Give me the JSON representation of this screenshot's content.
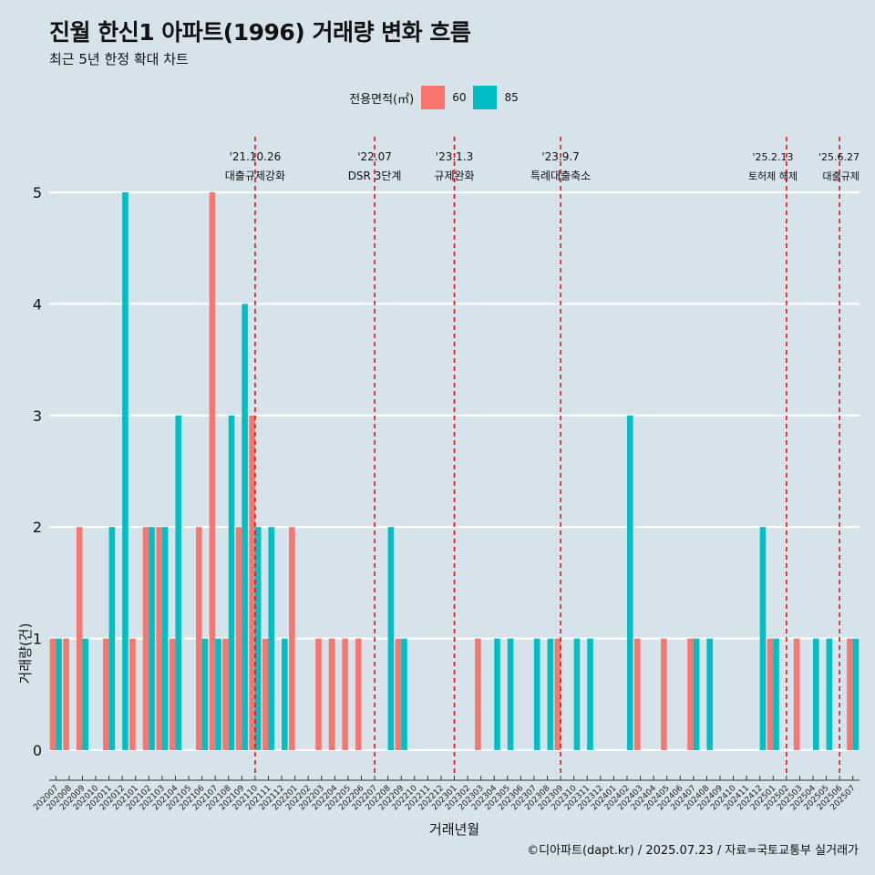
{
  "title": "진월 한신1 아파트(1996) 거래량 변화 흐름",
  "subtitle": "최근 5년 한정 확대 차트",
  "legend": {
    "title": "전용면적(㎡)",
    "items": [
      {
        "label": "60",
        "color": "#f8766d"
      },
      {
        "label": "85",
        "color": "#00bfc4"
      }
    ]
  },
  "caption": "©디아파트(dapt.kr) / 2025.07.23 / 자료=국토교통부 실거래가",
  "chart_data": {
    "type": "bar",
    "xlabel": "거래년월",
    "ylabel": "거래량(건)",
    "ylim": [
      0,
      5
    ],
    "yticks": [
      0,
      1,
      2,
      3,
      4,
      5
    ],
    "categories": [
      "202007",
      "202008",
      "202009",
      "202010",
      "202011",
      "202012",
      "202101",
      "202102",
      "202103",
      "202104",
      "202105",
      "202106",
      "202107",
      "202108",
      "202109",
      "202110",
      "202111",
      "202112",
      "202201",
      "202202",
      "202203",
      "202204",
      "202205",
      "202206",
      "202207",
      "202208",
      "202209",
      "202210",
      "202211",
      "202212",
      "202301",
      "202302",
      "202303",
      "202304",
      "202305",
      "202306",
      "202307",
      "202308",
      "202309",
      "202310",
      "202311",
      "202312",
      "202401",
      "202402",
      "202403",
      "202404",
      "202405",
      "202406",
      "202407",
      "202408",
      "202409",
      "202410",
      "202411",
      "202412",
      "202501",
      "202502",
      "202503",
      "202504",
      "202505",
      "202506",
      "202507"
    ],
    "series": [
      {
        "name": "60",
        "color": "#f8766d",
        "values": [
          1,
          1,
          2,
          0,
          1,
          0,
          1,
          2,
          2,
          1,
          0,
          2,
          5,
          1,
          2,
          3,
          1,
          0,
          2,
          0,
          1,
          1,
          1,
          1,
          0,
          0,
          1,
          0,
          0,
          0,
          0,
          0,
          1,
          0,
          0,
          0,
          0,
          0,
          1,
          0,
          0,
          0,
          0,
          0,
          1,
          0,
          1,
          0,
          1,
          0,
          0,
          0,
          0,
          0,
          1,
          0,
          1,
          0,
          0,
          0,
          1
        ]
      },
      {
        "name": "85",
        "color": "#00bfc4",
        "values": [
          1,
          0,
          1,
          0,
          2,
          5,
          0,
          2,
          2,
          3,
          0,
          1,
          1,
          3,
          4,
          2,
          2,
          1,
          0,
          0,
          0,
          0,
          0,
          0,
          0,
          2,
          1,
          0,
          0,
          0,
          0,
          0,
          0,
          1,
          1,
          0,
          1,
          1,
          0,
          1,
          1,
          0,
          0,
          3,
          0,
          0,
          0,
          0,
          1,
          1,
          0,
          0,
          0,
          2,
          1,
          0,
          0,
          1,
          1,
          0,
          1
        ]
      }
    ],
    "annotations": [
      {
        "date": "'21.10.26",
        "label": "대출규제강화",
        "category": "202110"
      },
      {
        "date": "'22.07",
        "label": "DSR 3단계",
        "category": "202207"
      },
      {
        "date": "'23.1.3",
        "label": "규제완화",
        "category": "202301"
      },
      {
        "date": "'23.9.7",
        "label": "특례대출축소",
        "category": "202309"
      },
      {
        "date": "'25.2.13",
        "label": "토허제 해제",
        "category": "202502"
      },
      {
        "date": "'25.6.27",
        "label": "대출규제",
        "category": "202506"
      }
    ]
  }
}
